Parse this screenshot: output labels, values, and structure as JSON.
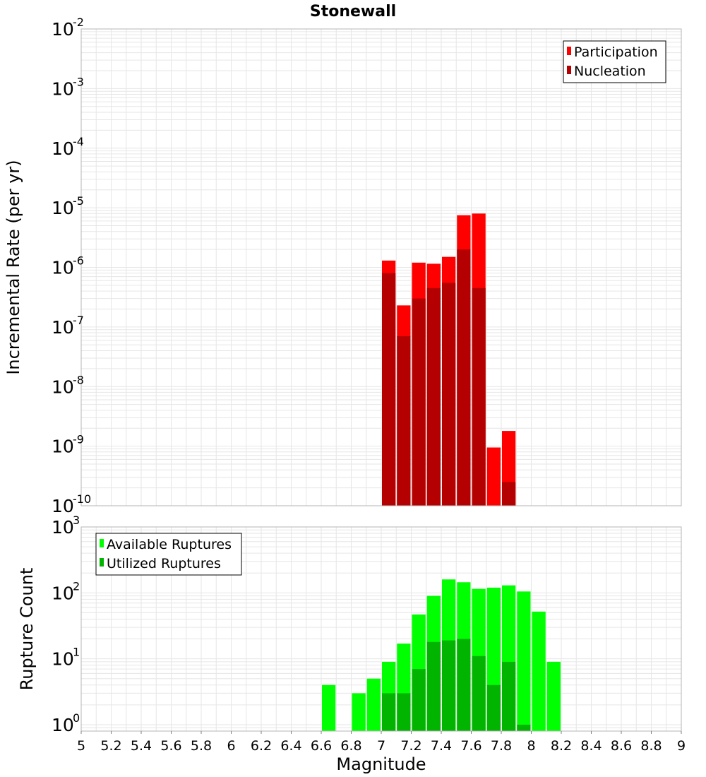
{
  "title": "Stonewall",
  "colors": {
    "participation": "#ff0000",
    "nucleation": "#b40000",
    "available": "#00ff00",
    "utilized": "#00b400",
    "grid": "#e6e6e6",
    "frame": "#b4b4b4"
  },
  "chart_data": [
    {
      "type": "bar",
      "panel": "top",
      "ylabel": "Incremental Rate (per yr)",
      "yscale": "log",
      "ylim": [
        1e-10,
        0.01
      ],
      "xlim": [
        5,
        9
      ],
      "grid": true,
      "legend_position": "top-right",
      "bin_width": 0.1,
      "x": [
        7.05,
        7.15,
        7.25,
        7.35,
        7.45,
        7.55,
        7.65,
        7.75,
        7.85
      ],
      "series": [
        {
          "name": "Participation",
          "color": "#ff0000",
          "values": [
            1.3e-06,
            2.3e-07,
            1.2e-06,
            1.15e-06,
            1.5e-06,
            7.5e-06,
            8e-06,
            9.5e-10,
            1.8e-09
          ]
        },
        {
          "name": "Nucleation",
          "color": "#b40000",
          "values": [
            8e-07,
            7e-08,
            3e-07,
            4.5e-07,
            5.5e-07,
            2e-06,
            4.5e-07,
            null,
            2.5e-10
          ]
        }
      ],
      "ytick_labels": [
        {
          "base": "10",
          "exp": "-10",
          "value": 1e-10
        },
        {
          "base": "10",
          "exp": "-9",
          "value": 1e-09
        },
        {
          "base": "10",
          "exp": "-8",
          "value": 1e-08
        },
        {
          "base": "10",
          "exp": "-7",
          "value": 1e-07
        },
        {
          "base": "10",
          "exp": "-6",
          "value": 1e-06
        },
        {
          "base": "10",
          "exp": "-5",
          "value": 1e-05
        },
        {
          "base": "10",
          "exp": "-4",
          "value": 0.0001
        },
        {
          "base": "10",
          "exp": "-3",
          "value": 0.001
        },
        {
          "base": "10",
          "exp": "-2",
          "value": 0.01
        }
      ]
    },
    {
      "type": "bar",
      "panel": "bottom",
      "xlabel": "Magnitude",
      "ylabel": "Rupture Count",
      "yscale": "log",
      "ylim": [
        0.8,
        1000
      ],
      "xlim": [
        5,
        9
      ],
      "grid": true,
      "legend_position": "top-left",
      "bin_width": 0.1,
      "x": [
        6.65,
        6.75,
        6.85,
        6.95,
        7.05,
        7.15,
        7.25,
        7.35,
        7.45,
        7.55,
        7.65,
        7.75,
        7.85,
        7.95,
        8.05,
        8.15
      ],
      "series": [
        {
          "name": "Available Ruptures",
          "color": "#00ff00",
          "values": [
            4,
            null,
            3,
            5,
            9,
            17,
            47,
            90,
            160,
            145,
            115,
            120,
            130,
            105,
            52,
            9
          ]
        },
        {
          "name": "Utilized Ruptures",
          "color": "#00b400",
          "values": [
            null,
            null,
            null,
            null,
            3,
            3,
            7,
            18,
            19,
            20,
            11,
            4,
            9,
            1,
            null,
            null
          ]
        }
      ],
      "ytick_labels": [
        {
          "base": "10",
          "exp": "0",
          "value": 1
        },
        {
          "base": "10",
          "exp": "1",
          "value": 10
        },
        {
          "base": "10",
          "exp": "2",
          "value": 100
        },
        {
          "base": "10",
          "exp": "3",
          "value": 1000
        }
      ],
      "xtick_labels": [
        "5",
        "5.2",
        "5.4",
        "5.6",
        "5.8",
        "6",
        "6.2",
        "6.4",
        "6.6",
        "6.8",
        "7",
        "7.2",
        "7.4",
        "7.6",
        "7.8",
        "8",
        "8.2",
        "8.4",
        "8.6",
        "8.8",
        "9"
      ],
      "xtick_values": [
        5,
        5.2,
        5.4,
        5.6,
        5.8,
        6,
        6.2,
        6.4,
        6.6,
        6.8,
        7,
        7.2,
        7.4,
        7.6,
        7.8,
        8,
        8.2,
        8.4,
        8.6,
        8.8,
        9
      ]
    }
  ]
}
